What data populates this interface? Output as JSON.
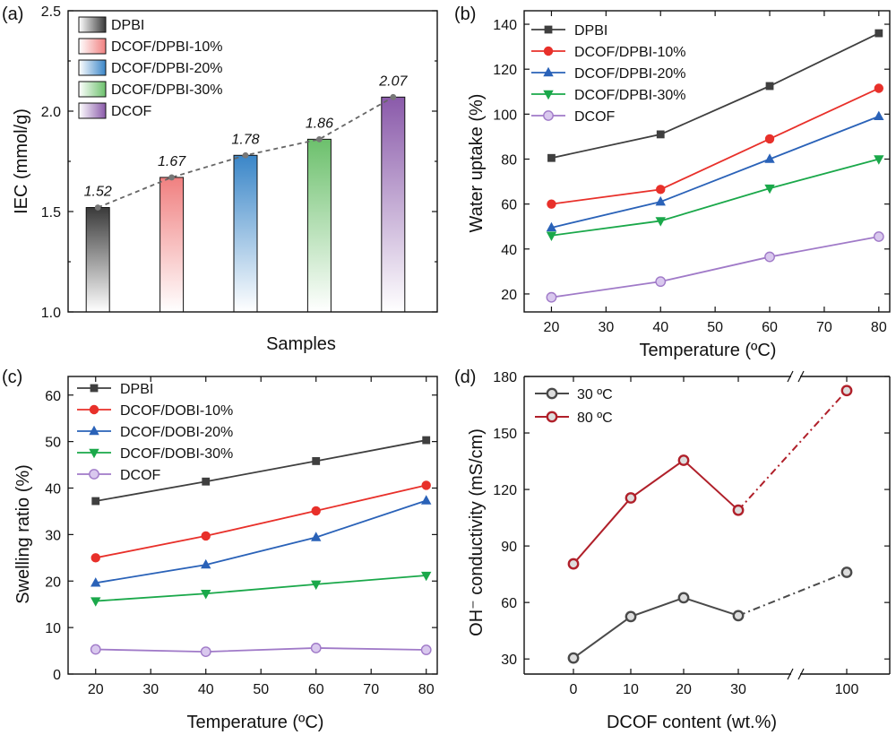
{
  "chart_data": [
    {
      "panel": "(a)",
      "type": "bar",
      "xlabel": "Samples",
      "ylabel": "IEC (mmol/g)",
      "ylim": [
        1.0,
        2.5
      ],
      "yticks": [
        "1.0",
        "1.5",
        "2.0",
        "2.5"
      ],
      "categories": [
        "DPBI",
        "DCOF/DPBI-10%",
        "DCOF/DPBI-20%",
        "DCOF/DPBI-30%",
        "DCOF"
      ],
      "values": [
        1.52,
        1.67,
        1.78,
        1.86,
        2.07
      ],
      "value_labels": [
        "1.52",
        "1.67",
        "1.78",
        "1.86",
        "2.07"
      ],
      "colors": [
        "#3a3a3a",
        "#f08080",
        "#3a86c8",
        "#6cc06c",
        "#8a5aaa"
      ],
      "trend_line": "dashed",
      "legend": [
        "DPBI",
        "DCOF/DPBI-10%",
        "DCOF/DPBI-20%",
        "DCOF/DPBI-30%",
        "DCOF"
      ],
      "legend_position": "top-left"
    },
    {
      "panel": "(b)",
      "type": "line",
      "xlabel": "Temperature (ºC)",
      "ylabel": "Water uptake (%)",
      "x": [
        20,
        40,
        60,
        80
      ],
      "xlim": [
        15,
        82
      ],
      "xticks": [
        20,
        30,
        40,
        50,
        60,
        70,
        80
      ],
      "ylim": [
        12,
        146
      ],
      "yticks": [
        20,
        40,
        60,
        80,
        100,
        120,
        140
      ],
      "series": [
        {
          "name": "DPBI",
          "values": [
            80.5,
            91,
            112.5,
            136
          ],
          "color": "#3f3f3f",
          "marker": "square"
        },
        {
          "name": "DCOF/DPBI-10%",
          "values": [
            60,
            66.5,
            89,
            111.5
          ],
          "color": "#e8302a",
          "marker": "circle"
        },
        {
          "name": "DCOF/DPBI-20%",
          "values": [
            49.5,
            61,
            80,
            99
          ],
          "color": "#2a62b8",
          "marker": "triangle-up"
        },
        {
          "name": "DCOF/DPBI-30%",
          "values": [
            46,
            52.5,
            67,
            80
          ],
          "color": "#1aa84a",
          "marker": "triangle-down"
        },
        {
          "name": "DCOF",
          "values": [
            18.5,
            25.5,
            36.5,
            45.5
          ],
          "color": "#a07ac8",
          "marker": "circle-open"
        }
      ],
      "legend_position": "top-left"
    },
    {
      "panel": "(c)",
      "type": "line",
      "xlabel": "Temperature (ºC)",
      "ylabel": "Swelling ratio (%)",
      "x": [
        20,
        40,
        60,
        80
      ],
      "xlim": [
        15,
        82
      ],
      "xticks": [
        20,
        30,
        40,
        50,
        60,
        70,
        80
      ],
      "ylim": [
        0,
        64
      ],
      "yticks": [
        0,
        10,
        20,
        30,
        40,
        50,
        60
      ],
      "series": [
        {
          "name": "DPBI",
          "values": [
            37.2,
            41.4,
            45.8,
            50.3
          ],
          "color": "#3f3f3f",
          "marker": "square"
        },
        {
          "name": "DCOF/DOBI-10%",
          "values": [
            25,
            29.7,
            35.1,
            40.6
          ],
          "color": "#e8302a",
          "marker": "circle"
        },
        {
          "name": "DCOF/DOBI-20%",
          "values": [
            19.6,
            23.5,
            29.4,
            37.3
          ],
          "color": "#2a62b8",
          "marker": "triangle-up"
        },
        {
          "name": "DCOF/DOBI-30%",
          "values": [
            15.7,
            17.3,
            19.3,
            21.2
          ],
          "color": "#1aa84a",
          "marker": "triangle-down"
        },
        {
          "name": "DCOF",
          "values": [
            5.3,
            4.8,
            5.6,
            5.2
          ],
          "color": "#a07ac8",
          "marker": "circle-open"
        }
      ],
      "legend_position": "top-left"
    },
    {
      "panel": "(d)",
      "type": "line",
      "xlabel": "DCOF content (wt.%)",
      "ylabel": "OH⁻ conductivity (mS/cm)",
      "categories": [
        "0",
        "10",
        "20",
        "30",
        "100"
      ],
      "axis_break": "between 30 and 100",
      "ylim": [
        22,
        180
      ],
      "yticks": [
        30,
        60,
        90,
        120,
        150,
        180
      ],
      "series": [
        {
          "name": "30 ºC",
          "values": [
            30.5,
            52.5,
            62.5,
            53,
            76
          ],
          "color": "#4a4a4a"
        },
        {
          "name": "80 ºC",
          "values": [
            80.5,
            115.5,
            135.5,
            109,
            172.5
          ],
          "color": "#b0202a"
        }
      ],
      "last_segment": "dash-dot",
      "legend_position": "top-left"
    }
  ]
}
